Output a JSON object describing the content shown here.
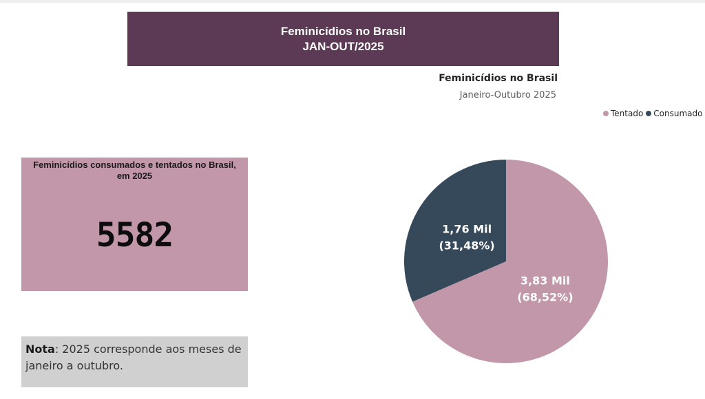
{
  "banner": {
    "line1": "Feminicídios no Brasil",
    "line2": "JAN-OUT/2025"
  },
  "kpi": {
    "title": "Feminicídios consumados e tentados no Brasil, em 2025",
    "value": "5582",
    "background": "#c197a9"
  },
  "note": {
    "label": "Nota",
    "text": ": 2025 corresponde aos meses de janeiro a outubro."
  },
  "colors": {
    "tentado": "#c197a9",
    "consumado": "#36495a",
    "banner": "#5c3a55"
  },
  "chart_data": {
    "type": "pie",
    "title": "Feminicídios no Brasil",
    "subtitle": "Janeiro-Outubro 2025",
    "legend_position": "top-right",
    "slices": [
      {
        "name": "Tentado",
        "value": 3830,
        "label": "3,83 Mil",
        "percent_label": "(68,52%)",
        "color": "#c197a9"
      },
      {
        "name": "Consumado",
        "value": 1760,
        "label": "1,76 Mil",
        "percent_label": "(31,48%)",
        "color": "#36495a"
      }
    ]
  }
}
